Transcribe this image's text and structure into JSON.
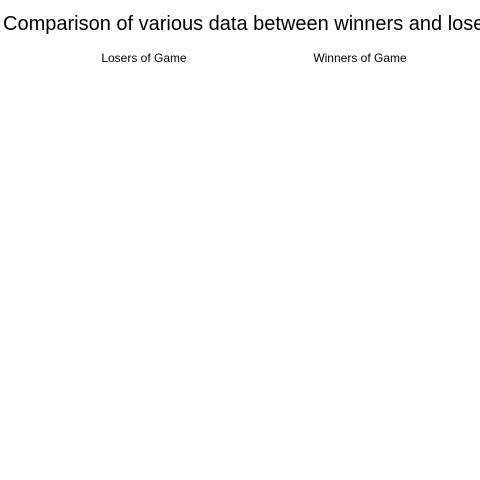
{
  "chart_data": {
    "type": "pie",
    "title": "Comparison of various data between winners and losers",
    "panels": [
      {
        "name": "Losers of Game",
        "categories": [],
        "values": []
      },
      {
        "name": "Winners of Game",
        "categories": [],
        "values": []
      }
    ],
    "legend": "none"
  }
}
